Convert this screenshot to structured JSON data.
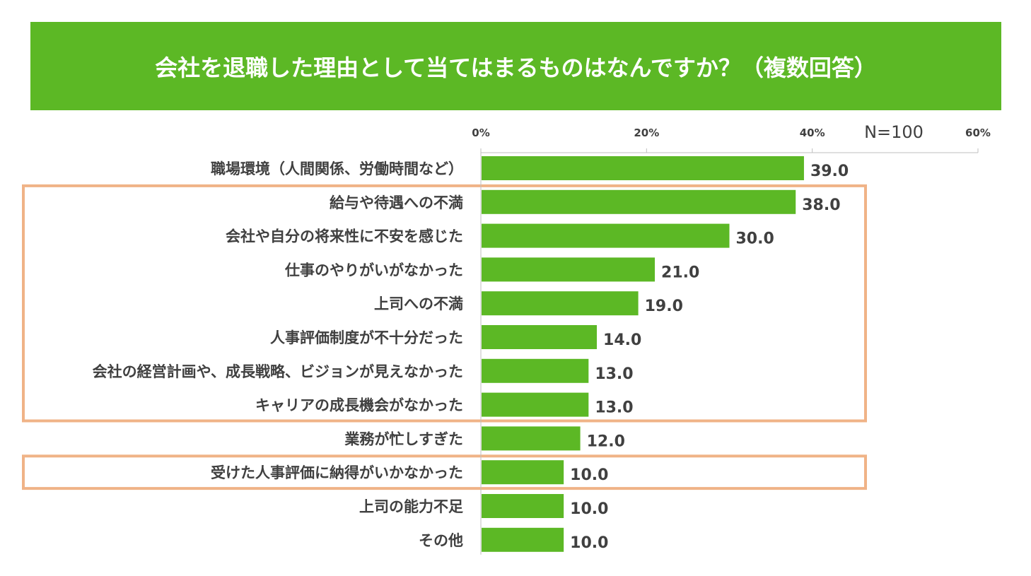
{
  "chart_data": {
    "type": "bar",
    "orientation": "horizontal",
    "title": "会社を退職した理由として当てはまるものはなんですか？（複数回答）",
    "n_label": "N=100",
    "categories": [
      "職場環境（人間関係、労働時間など）",
      "給与や待遇への不満",
      "会社や自分の将来性に不安を感じた",
      "仕事のやりがいがなかった",
      "上司への不満",
      "人事評価制度が不十分だった",
      "会社の経営計画や、成長戦略、ビジョンが見えなかった",
      "キャリアの成長機会がなかった",
      "業務が忙しすぎた",
      "受けた人事評価に納得がいかなかった",
      "上司の能力不足",
      "その他"
    ],
    "values": [
      39.0,
      38.0,
      30.0,
      21.0,
      19.0,
      14.0,
      13.0,
      13.0,
      12.0,
      10.0,
      10.0,
      10.0
    ],
    "value_labels": [
      "39.0",
      "38.0",
      "30.0",
      "21.0",
      "19.0",
      "14.0",
      "13.0",
      "13.0",
      "12.0",
      "10.0",
      "10.0",
      "10.0"
    ],
    "xlim": [
      0,
      60
    ],
    "xticks": [
      0,
      20,
      40,
      60
    ],
    "xtick_labels": [
      "0%",
      "20%",
      "40%",
      "60%"
    ],
    "legend": "none",
    "grid": false,
    "highlight_groups": [
      {
        "from_index": 1,
        "to_index": 7
      },
      {
        "from_index": 9,
        "to_index": 9
      }
    ],
    "colors": {
      "bar": "#5cb825",
      "title_bg": "#5cb825",
      "highlight_border": "#f0b387",
      "text": "#404040",
      "axis": "#bfbfbf"
    }
  }
}
